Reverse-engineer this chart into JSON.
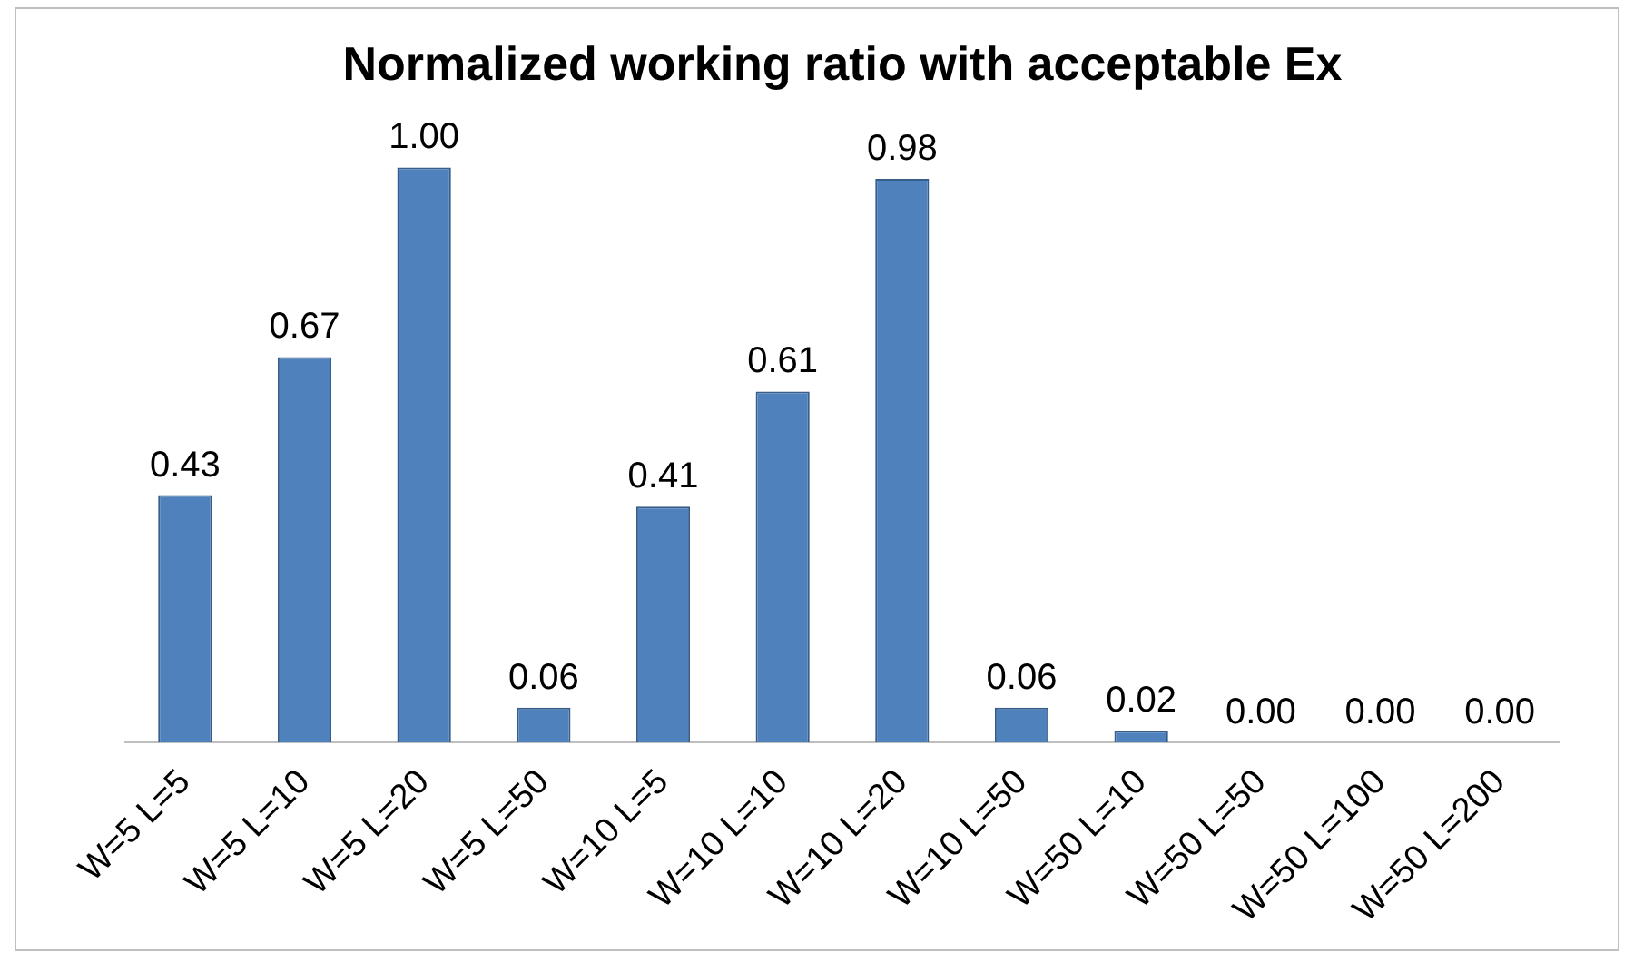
{
  "chart_data": {
    "type": "bar",
    "title": "Normalized working ratio with acceptable Ex",
    "categories": [
      "W=5 L=5",
      "W=5 L=10",
      "W=5 L=20",
      "W=5 L=50",
      "W=10 L=5",
      "W=10 L=10",
      "W=10 L=20",
      "W=10 L=50",
      "W=50 L=10",
      "W=50 L=50",
      "W=50 L=100",
      "W=50 L=200"
    ],
    "values": [
      0.43,
      0.67,
      1.0,
      0.06,
      0.41,
      0.61,
      0.98,
      0.06,
      0.02,
      0.0,
      0.0,
      0.0
    ],
    "value_labels": [
      "0.43",
      "0.67",
      "1.00",
      "0.06",
      "0.41",
      "0.61",
      "0.98",
      "0.06",
      "0.02",
      "0.00",
      "0.00",
      "0.00"
    ],
    "color": "#4f81bd",
    "grid": false,
    "legend": false
  }
}
